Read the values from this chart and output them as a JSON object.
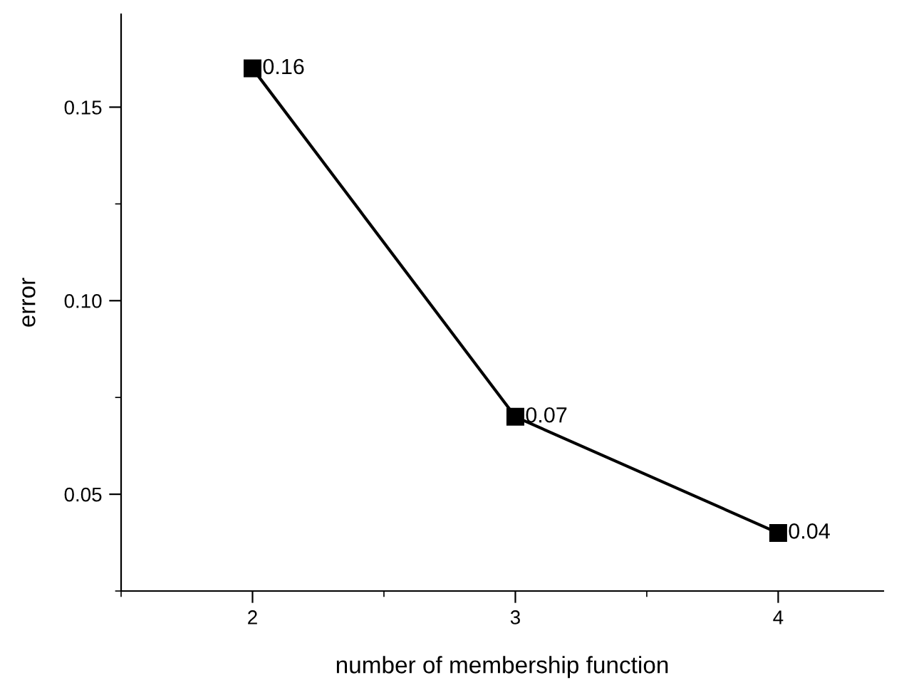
{
  "chart_data": {
    "type": "line",
    "xlabel": "number of membership function",
    "ylabel": "error",
    "x": [
      2,
      3,
      4
    ],
    "series": [
      {
        "color": "#000000",
        "values": [
          0.16,
          0.07,
          0.04
        ]
      }
    ],
    "data_labels": true,
    "marker": "square",
    "line_style": "solid",
    "grid": false,
    "legend": false,
    "xlim": [
      1.5,
      4.4
    ],
    "xticks": [
      2,
      3,
      4
    ],
    "ylim": [
      0.025,
      0.174
    ],
    "yticks": [
      0.05,
      {
        "value": 0.1,
        "label": "0.10"
      },
      0.15
    ]
  }
}
